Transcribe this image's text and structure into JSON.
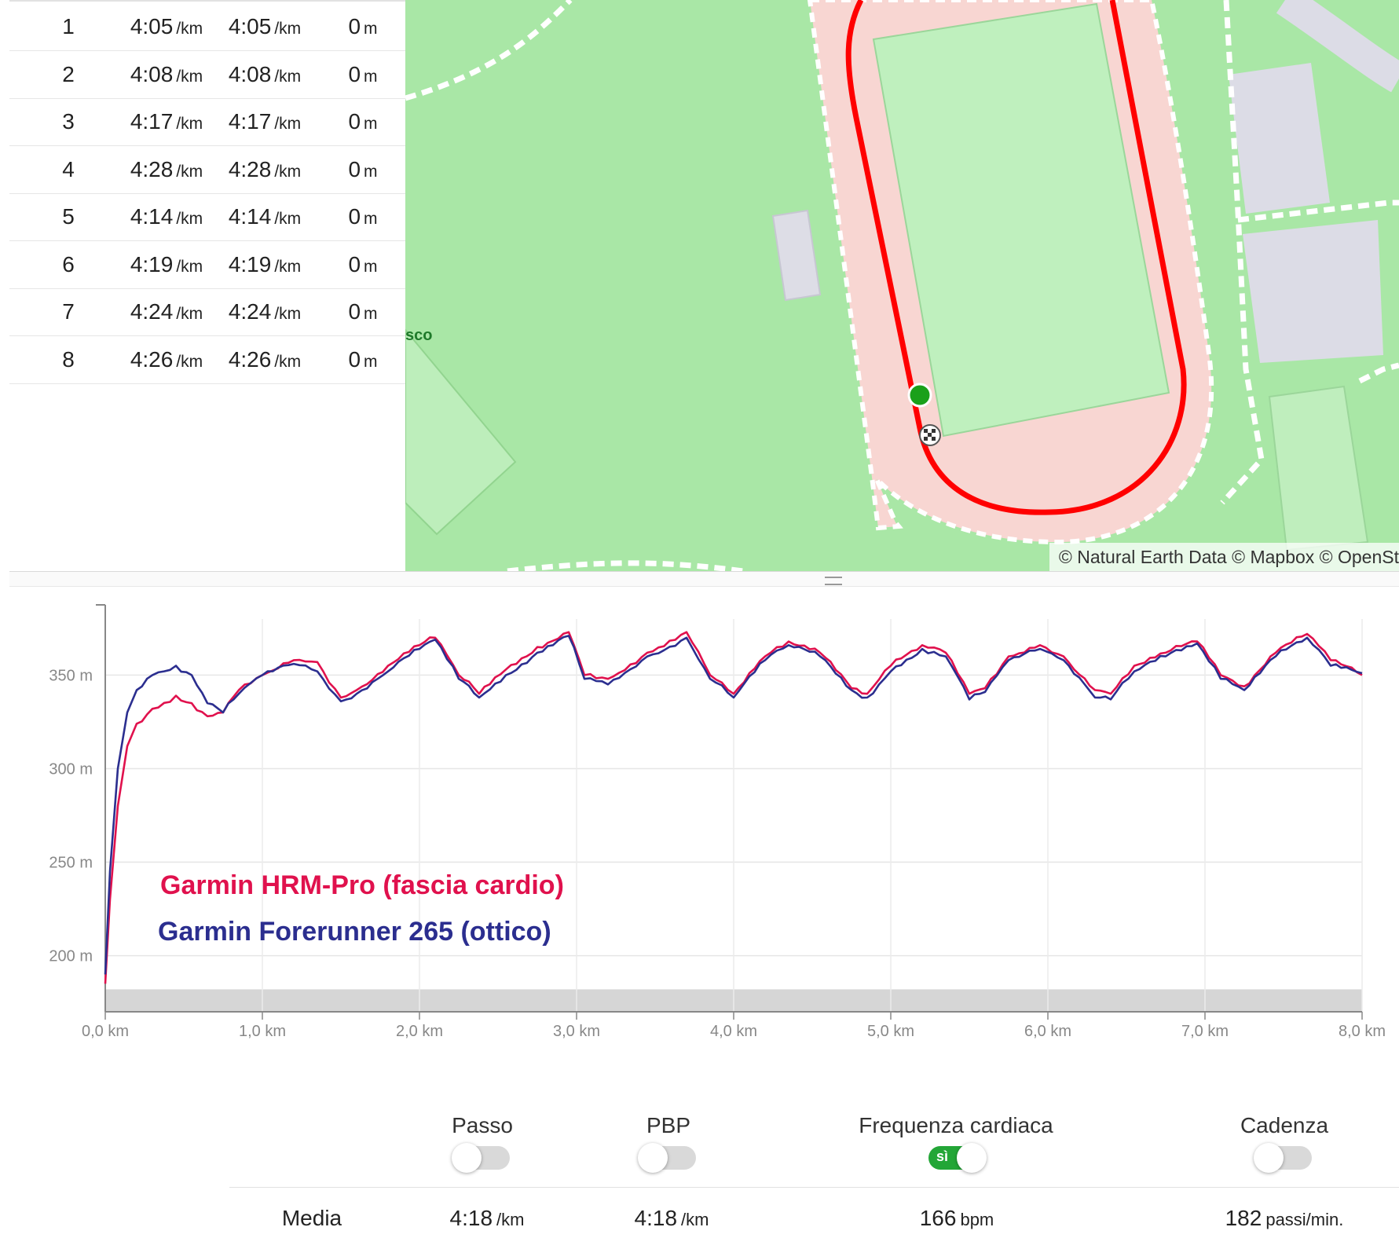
{
  "laps": [
    {
      "lap": "1",
      "pace_a": "4:05",
      "pace_b": "4:05",
      "elevation": "0"
    },
    {
      "lap": "2",
      "pace_a": "4:08",
      "pace_b": "4:08",
      "elevation": "0"
    },
    {
      "lap": "3",
      "pace_a": "4:17",
      "pace_b": "4:17",
      "elevation": "0"
    },
    {
      "lap": "4",
      "pace_a": "4:28",
      "pace_b": "4:28",
      "elevation": "0"
    },
    {
      "lap": "5",
      "pace_a": "4:14",
      "pace_b": "4:14",
      "elevation": "0"
    },
    {
      "lap": "6",
      "pace_a": "4:19",
      "pace_b": "4:19",
      "elevation": "0"
    },
    {
      "lap": "7",
      "pace_a": "4:24",
      "pace_b": "4:24",
      "elevation": "0"
    },
    {
      "lap": "8",
      "pace_a": "4:26",
      "pace_b": "4:26",
      "elevation": "0"
    }
  ],
  "units": {
    "pace": "/km",
    "elevation": "m",
    "hr": "bpm",
    "cadence": "passi/min."
  },
  "map": {
    "attribution": "© Natural Earth Data © Mapbox © OpenSt",
    "partial_label": "sco",
    "route_color": "#ff0000",
    "start_marker_color": "#1aa01a"
  },
  "chart_data": {
    "type": "line",
    "xlabel": "",
    "ylabel": "",
    "x_ticks": [
      "0,0 km",
      "1,0 km",
      "2,0 km",
      "3,0 km",
      "4,0 km",
      "5,0 km",
      "6,0 km",
      "7,0 km",
      "8,0 km"
    ],
    "y_ticks": [
      "350 m",
      "300 m",
      "250 m",
      "200 m"
    ],
    "xlim": [
      0,
      8
    ],
    "ylim": [
      170,
      380
    ],
    "grid": true,
    "annotations": [
      {
        "text": "Garmin HRM-Pro (fascia cardio)",
        "color": "#e0114d"
      },
      {
        "text": "Garmin Forerunner 265 (ottico)",
        "color": "#2b2e8f"
      }
    ],
    "series": [
      {
        "color": "#e0114d",
        "x": [
          0,
          0.03,
          0.08,
          0.14,
          0.2,
          0.3,
          0.45,
          0.55,
          0.65,
          0.75,
          0.85,
          1.0,
          1.2,
          1.35,
          1.5,
          1.6,
          1.8,
          2.0,
          2.1,
          2.25,
          2.38,
          2.55,
          2.75,
          2.95,
          3.05,
          3.2,
          3.45,
          3.7,
          3.85,
          4.0,
          4.2,
          4.35,
          4.55,
          4.75,
          4.85,
          5.0,
          5.2,
          5.35,
          5.5,
          5.6,
          5.75,
          5.95,
          6.1,
          6.3,
          6.4,
          6.55,
          6.75,
          6.95,
          7.1,
          7.25,
          7.45,
          7.65,
          7.8,
          8.0
        ],
        "y": [
          185,
          230,
          280,
          312,
          324,
          332,
          339,
          335,
          328,
          330,
          342,
          350,
          358,
          357,
          338,
          342,
          355,
          366,
          370,
          350,
          340,
          353,
          365,
          373,
          350,
          348,
          362,
          373,
          350,
          340,
          360,
          368,
          362,
          343,
          340,
          355,
          366,
          362,
          340,
          343,
          360,
          366,
          360,
          342,
          340,
          355,
          362,
          368,
          350,
          344,
          362,
          372,
          358,
          350
        ]
      },
      {
        "color": "#2b2e8f",
        "x": [
          0,
          0.03,
          0.08,
          0.14,
          0.2,
          0.3,
          0.45,
          0.55,
          0.65,
          0.75,
          0.85,
          1.0,
          1.2,
          1.35,
          1.5,
          1.6,
          1.8,
          2.0,
          2.1,
          2.25,
          2.38,
          2.55,
          2.75,
          2.95,
          3.05,
          3.2,
          3.45,
          3.7,
          3.85,
          4.0,
          4.2,
          4.35,
          4.55,
          4.75,
          4.85,
          5.0,
          5.2,
          5.35,
          5.5,
          5.6,
          5.75,
          5.95,
          6.1,
          6.3,
          6.4,
          6.55,
          6.75,
          6.95,
          7.1,
          7.25,
          7.45,
          7.65,
          7.8,
          8.0
        ],
        "y": [
          190,
          245,
          300,
          330,
          342,
          350,
          355,
          350,
          335,
          330,
          340,
          350,
          356,
          352,
          336,
          340,
          352,
          364,
          369,
          348,
          338,
          350,
          362,
          371,
          348,
          345,
          360,
          370,
          348,
          338,
          358,
          366,
          360,
          342,
          338,
          352,
          364,
          360,
          337,
          341,
          358,
          364,
          358,
          338,
          337,
          352,
          360,
          367,
          348,
          342,
          360,
          370,
          355,
          351
        ]
      }
    ]
  },
  "controls": [
    {
      "label": "Passo",
      "state": "off",
      "on_text": ""
    },
    {
      "label": "PBP",
      "state": "off",
      "on_text": ""
    },
    {
      "label": "Frequenza cardiaca",
      "state": "on",
      "on_text": "sì"
    },
    {
      "label": "Cadenza",
      "state": "off",
      "on_text": ""
    }
  ],
  "summary": {
    "label": "Media",
    "pace": "4:18",
    "pbp": "4:18",
    "hr": "166",
    "cadence": "182"
  }
}
